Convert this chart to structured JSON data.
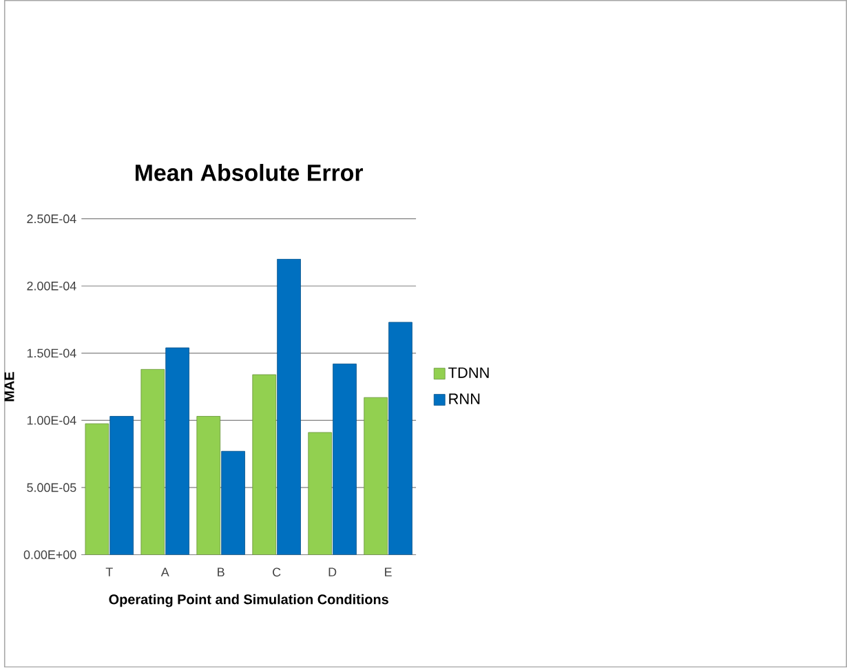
{
  "chart_data": {
    "type": "bar",
    "title": "Mean Absolute Error",
    "xlabel": "Operating Point and Simulation Conditions",
    "ylabel": "MAE",
    "categories": [
      "T",
      "A",
      "B",
      "C",
      "D",
      "E"
    ],
    "series": [
      {
        "name": "TDNN",
        "color": "#92d050",
        "values": [
          9.75e-05,
          0.000138,
          0.000103,
          0.000134,
          9.1e-05,
          0.000117
        ]
      },
      {
        "name": "RNN",
        "color": "#0070c0",
        "values": [
          0.000103,
          0.000154,
          7.7e-05,
          0.00022,
          0.000142,
          0.000173
        ]
      }
    ],
    "ylim": [
      0,
      0.00025
    ],
    "yticks": [
      {
        "value": 0,
        "label": "0.00E+00"
      },
      {
        "value": 5e-05,
        "label": "5.00E-05"
      },
      {
        "value": 0.0001,
        "label": "1.00E-04"
      },
      {
        "value": 0.00015,
        "label": "1.50E-04"
      },
      {
        "value": 0.0002,
        "label": "2.00E-04"
      },
      {
        "value": 0.00025,
        "label": "2.50E-04"
      }
    ],
    "grid": "y",
    "legend": "right"
  }
}
